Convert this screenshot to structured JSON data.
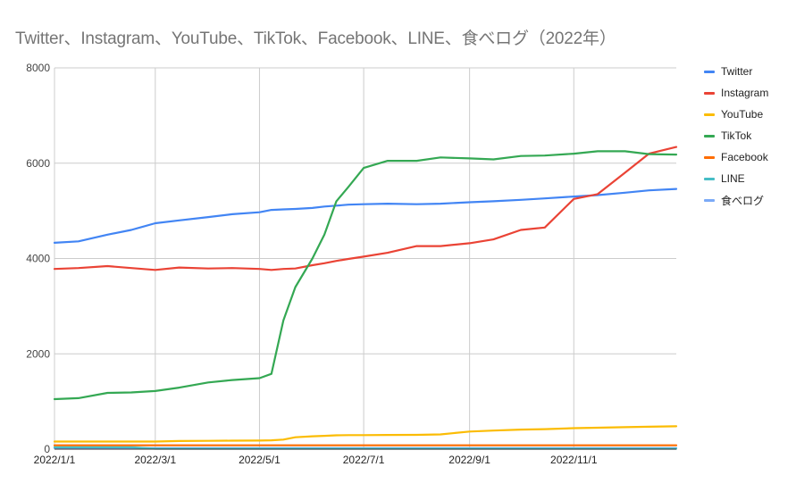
{
  "chart_data": {
    "type": "line",
    "title": "Twitter、Instagram、YouTube、TikTok、Facebook、LINE、食べログ（2022年）",
    "xlabel": "",
    "ylabel": "",
    "ylim": [
      0,
      8000
    ],
    "yticks": [
      "0",
      "2000",
      "4000",
      "6000",
      "8000"
    ],
    "xticks": [
      "2022/1/1",
      "2022/3/1",
      "2022/5/1",
      "2022/7/1",
      "2022/9/1",
      "2022/11/1"
    ],
    "grid": true,
    "legend_position": "right",
    "x": [
      "2022/1/1",
      "2022/1/15",
      "2022/2/1",
      "2022/2/15",
      "2022/3/1",
      "2022/3/15",
      "2022/4/1",
      "2022/4/15",
      "2022/5/1",
      "2022/5/8",
      "2022/5/15",
      "2022/5/22",
      "2022/6/1",
      "2022/6/8",
      "2022/6/15",
      "2022/6/22",
      "2022/7/1",
      "2022/7/15",
      "2022/8/1",
      "2022/8/15",
      "2022/9/1",
      "2022/9/15",
      "2022/10/1",
      "2022/10/15",
      "2022/11/1",
      "2022/11/15",
      "2022/12/1",
      "2022/12/15",
      "2022/12/31"
    ],
    "series": [
      {
        "name": "Twitter",
        "color": "#4285f4",
        "values": [
          4330,
          4360,
          4500,
          4600,
          4740,
          4800,
          4870,
          4930,
          4970,
          5020,
          5030,
          5040,
          5060,
          5090,
          5110,
          5130,
          5140,
          5150,
          5140,
          5150,
          5180,
          5200,
          5230,
          5260,
          5300,
          5330,
          5380,
          5430,
          5460
        ]
      },
      {
        "name": "Instagram",
        "color": "#ea4335",
        "values": [
          3780,
          3800,
          3840,
          3800,
          3760,
          3810,
          3790,
          3800,
          3780,
          3760,
          3780,
          3790,
          3860,
          3900,
          3950,
          3990,
          4040,
          4120,
          4260,
          4260,
          4320,
          4400,
          4600,
          4650,
          5250,
          5350,
          5800,
          6200,
          6340
        ]
      },
      {
        "name": "YouTube",
        "color": "#fbbc04",
        "values": [
          160,
          160,
          160,
          160,
          160,
          170,
          175,
          178,
          180,
          185,
          200,
          250,
          270,
          280,
          290,
          295,
          295,
          298,
          300,
          310,
          370,
          390,
          410,
          420,
          440,
          450,
          460,
          470,
          480
        ]
      },
      {
        "name": "TikTok",
        "color": "#34a853",
        "values": [
          1050,
          1070,
          1180,
          1190,
          1220,
          1290,
          1400,
          1450,
          1490,
          1580,
          2700,
          3400,
          4000,
          4500,
          5200,
          5500,
          5900,
          6050,
          6050,
          6120,
          6100,
          6080,
          6150,
          6160,
          6200,
          6250,
          6250,
          6190,
          6180
        ]
      },
      {
        "name": "Facebook",
        "color": "#ff6d01",
        "values": [
          80,
          80,
          80,
          80,
          80,
          80,
          80,
          80,
          80,
          80,
          80,
          80,
          80,
          80,
          80,
          80,
          80,
          80,
          80,
          80,
          80,
          80,
          80,
          80,
          80,
          80,
          80,
          80,
          80
        ]
      },
      {
        "name": "LINE",
        "color": "#46bdc6",
        "values": [
          40,
          40,
          40,
          40,
          10,
          10,
          10,
          10,
          10,
          10,
          10,
          10,
          10,
          10,
          10,
          10,
          10,
          10,
          10,
          10,
          10,
          10,
          10,
          10,
          10,
          10,
          10,
          10,
          10
        ]
      },
      {
        "name": "食べログ",
        "color": "#7baaf7",
        "values": [
          20,
          20,
          20,
          20,
          20,
          20,
          20,
          20,
          20,
          20,
          20,
          20,
          20,
          20,
          20,
          20,
          20,
          20,
          20,
          20,
          20,
          20,
          20,
          20,
          20,
          20,
          20,
          20,
          20
        ]
      }
    ]
  },
  "legend": [
    {
      "label": "Twitter",
      "color": "#4285f4"
    },
    {
      "label": "Instagram",
      "color": "#ea4335"
    },
    {
      "label": "YouTube",
      "color": "#fbbc04"
    },
    {
      "label": "TikTok",
      "color": "#34a853"
    },
    {
      "label": "Facebook",
      "color": "#ff6d01"
    },
    {
      "label": "LINE",
      "color": "#46bdc6"
    },
    {
      "label": "食べログ",
      "color": "#7baaf7"
    }
  ]
}
